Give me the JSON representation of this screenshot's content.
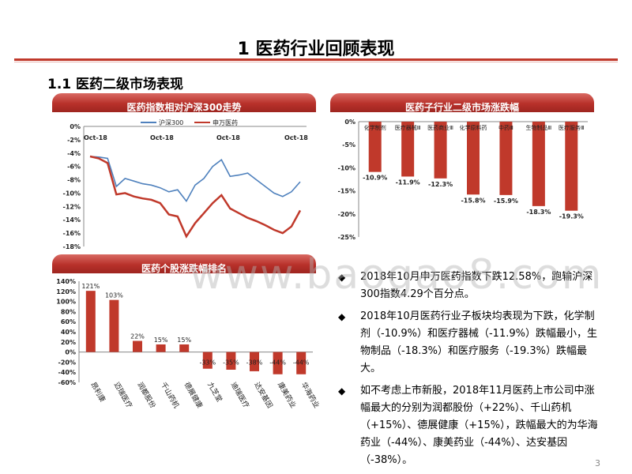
{
  "title": "1 医药行业回顾表现",
  "subtitle": "1.1 医药二级市场表现",
  "page_number": "3",
  "watermark": "www.baogao8.com",
  "panel1_title": "医药指数相对沪深300走势",
  "panel2_title": "医药子行业二级市场涨跌幅",
  "panel3_title": "医药个股涨跌幅排名",
  "bullets": [
    "2018年10月申万医药指数下跌12.58%，跑输沪深300指数4.29个百分点。",
    "2018年10月医药行业子板块均表现为下跌，化学制剂（-10.9%）和医疗器械（-11.9%）跌幅最小，生物制品（-18.3%）和医疗服务（-19.3%）跌幅最大。",
    "如不考虑上市新股，2018年11月医药上市公司中涨幅最大的分别为润都股份（+22%）、千山药机（+15%）、德展健康（+15%），跌幅最大的为华海药业（-44%）、康美药业（-44%）、达安基因（-38%）。"
  ],
  "colors": {
    "red": "#c0392b",
    "blue": "#4f81bd",
    "accent": "#b8312a"
  },
  "chart_data": [
    {
      "type": "line",
      "title": "医药指数相对沪深300走势",
      "x_tick_labels": [
        "Oct-18",
        "Oct-18",
        "Oct-18",
        "Oct-18"
      ],
      "y_tick_labels": [
        "0%",
        "-2%",
        "-4%",
        "-6%",
        "-8%",
        "-10%",
        "-12%",
        "-14%",
        "-16%",
        "-18%"
      ],
      "ylim": [
        -18,
        0
      ],
      "series": [
        {
          "name": "沪深300",
          "color": "#4f81bd",
          "values": [
            -4.5,
            -4.6,
            -4.8,
            -9.0,
            -7.8,
            -8.2,
            -8.6,
            -8.8,
            -9.2,
            -9.8,
            -9.5,
            -11.2,
            -8.8,
            -7.8,
            -6.0,
            -5.0,
            -7.5,
            -7.3,
            -7.0,
            -8.0,
            -9.0,
            -10.0,
            -10.5,
            -9.8,
            -8.3
          ]
        },
        {
          "name": "申万医药",
          "color": "#c0392b",
          "values": [
            -4.5,
            -4.8,
            -5.5,
            -10.2,
            -10.0,
            -10.5,
            -10.8,
            -11.0,
            -11.5,
            -13.2,
            -13.5,
            -16.5,
            -14.5,
            -13.0,
            -11.5,
            -10.3,
            -12.3,
            -13.0,
            -13.7,
            -14.2,
            -14.8,
            -15.5,
            -16.0,
            -15.0,
            -12.6
          ]
        }
      ]
    },
    {
      "type": "bar",
      "title": "医药子行业二级市场涨跌幅",
      "categories": [
        "化学制剂",
        "医疗器械Ⅲ",
        "医药商业Ⅲ",
        "化学原料药",
        "中药Ⅲ",
        "生物制品Ⅲ",
        "医疗服务Ⅲ"
      ],
      "values": [
        -10.9,
        -11.9,
        -12.3,
        -15.8,
        -15.9,
        -18.3,
        -19.3
      ],
      "labels": [
        "-10.9%",
        "-11.9%",
        "-12.3%",
        "-15.8%",
        "-15.9%",
        "-18.3%",
        "-19.3%"
      ],
      "y_tick_labels": [
        "0%",
        "-5%",
        "-10%",
        "-15%",
        "-20%",
        "-25%"
      ],
      "ylim": [
        -25,
        0
      ]
    },
    {
      "type": "bar",
      "title": "医药个股涨跌幅排名",
      "categories": [
        "昂利康",
        "迈瑞医疗",
        "润都股份",
        "千山药机",
        "德展健康",
        "九芝堂",
        "迪瑞医疗",
        "达安基因",
        "康美药业",
        "华海药业"
      ],
      "values": [
        121,
        103,
        22,
        15,
        15,
        -33,
        -35,
        -38,
        -44,
        -44
      ],
      "labels": [
        "121%",
        "103%",
        "22%",
        "15%",
        "15%",
        "-33%",
        "-35%",
        "-38%",
        "-44%",
        "-44%"
      ],
      "y_tick_labels": [
        "140%",
        "120%",
        "100%",
        "80%",
        "60%",
        "40%",
        "20%",
        "0%",
        "-20%",
        "-40%",
        "-60%"
      ],
      "ylim": [
        -60,
        140
      ]
    }
  ]
}
